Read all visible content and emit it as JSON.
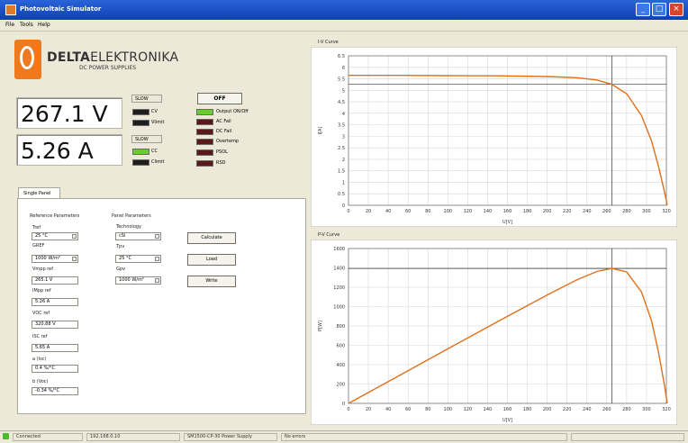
{
  "window": {
    "title": "Photovoltaic Simulator"
  },
  "menu": [
    "File",
    "Tools",
    "Help"
  ],
  "brand": {
    "name_bold": "DELTA",
    "name_light": "ELEKTRONIKA",
    "tagline": "DC POWER SUPPLIES"
  },
  "readouts": {
    "voltage": "267.1 V",
    "current": "5.26 A"
  },
  "status_groups": {
    "group1": {
      "label": "SLOW",
      "items": [
        {
          "label": "CV",
          "state": "off"
        },
        {
          "label": "Vlimit",
          "state": "off"
        }
      ]
    },
    "group2": {
      "label": "SLOW",
      "items": [
        {
          "label": "CC",
          "state": "on"
        },
        {
          "label": "Climit",
          "state": "off"
        }
      ]
    }
  },
  "output_button": {
    "label": "OFF"
  },
  "indicators": [
    {
      "label": "Output ON/Off",
      "state": "on"
    },
    {
      "label": "AC Fail",
      "state": "fault"
    },
    {
      "label": "DC Fail",
      "state": "fault"
    },
    {
      "label": "Overtemp",
      "state": "fault"
    },
    {
      "label": "PSOL",
      "state": "fault"
    },
    {
      "label": "RSD",
      "state": "fault"
    }
  ],
  "tab": {
    "label": "Single Panel"
  },
  "reference_params": {
    "title": "Reference Parameters",
    "tref_label": "Tref",
    "tref_value": "25 °C",
    "gref_label": "GREF",
    "gref_value": "1000 W/m²",
    "vmpp_label": "Vmpp ref",
    "vmpp_value": "265.1 V",
    "impp_label": "IMpp ref",
    "impp_value": "5.26 A",
    "voc_label": "VOC ref",
    "voc_value": "320.88 V",
    "isc_label": "ISC ref",
    "isc_value": "5.65 A",
    "a_label": "a (Isc)",
    "a_value": "0.4 %/°C",
    "b_label": "b (Voc)",
    "b_value": "-0.34 %/°C"
  },
  "panel_params": {
    "title": "Panel Parameters",
    "tech_label": "Technology",
    "tech_value": "cSi",
    "tpv_label": "Tpv",
    "tpv_value": "25 °C",
    "gpv_label": "Gpv",
    "gpv_value": "1000 W/m²"
  },
  "buttons": {
    "calculate": "Calculate",
    "load": "Load",
    "write": "Write"
  },
  "charts": {
    "iv": {
      "title": "I-V Curve"
    },
    "pv": {
      "title": "P-V Curve"
    }
  },
  "chart_data": [
    {
      "type": "line",
      "title": "I-V Curve",
      "xlabel": "U[V]",
      "ylabel": "I[A]",
      "xlim": [
        0,
        320
      ],
      "ylim": [
        0,
        6.5
      ],
      "xticks": [
        0,
        20,
        40,
        60,
        80,
        100,
        120,
        140,
        160,
        180,
        200,
        220,
        240,
        260,
        280,
        300,
        320
      ],
      "yticks": [
        0,
        0.5,
        1,
        1.5,
        2,
        2.5,
        3,
        3.5,
        4,
        4.5,
        5,
        5.5,
        6,
        6.5
      ],
      "grid": true,
      "cursor": {
        "x": 265.1,
        "y": 5.26
      },
      "series": [
        {
          "x": [
            0,
            50,
            100,
            150,
            200,
            230,
            250,
            265.1,
            280,
            295,
            305,
            312,
            318,
            320.88
          ],
          "y": [
            5.65,
            5.65,
            5.64,
            5.63,
            5.6,
            5.55,
            5.45,
            5.26,
            4.85,
            3.9,
            2.8,
            1.7,
            0.6,
            0
          ]
        }
      ]
    },
    {
      "type": "line",
      "title": "P-V Curve",
      "xlabel": "U[V]",
      "ylabel": "P[W]",
      "xlim": [
        0,
        320
      ],
      "ylim": [
        0,
        1600
      ],
      "xticks": [
        0,
        20,
        40,
        60,
        80,
        100,
        120,
        140,
        160,
        180,
        200,
        220,
        240,
        260,
        280,
        300,
        320
      ],
      "yticks": [
        0,
        200,
        400,
        600,
        800,
        1000,
        1200,
        1400,
        1600
      ],
      "grid": true,
      "cursor": {
        "x": 265.1,
        "y": 1394
      },
      "series": [
        {
          "x": [
            0,
            50,
            100,
            150,
            200,
            230,
            250,
            265.1,
            280,
            295,
            305,
            312,
            318,
            320.88
          ],
          "y": [
            0,
            282,
            564,
            845,
            1120,
            1277,
            1363,
            1394,
            1358,
            1151,
            854,
            530,
            191,
            0
          ]
        }
      ]
    }
  ],
  "statusbar": {
    "state": "Connected",
    "address": "192.168.0.10",
    "device": "SM1500-CP-30 Power Supply",
    "message": "No errors"
  },
  "colors": {
    "curve": "#e0701c",
    "cursor": "#333333",
    "grid": "#d6d6d6",
    "brand_orange": "#ee7a1d",
    "titlebar": "#1f55c8"
  }
}
